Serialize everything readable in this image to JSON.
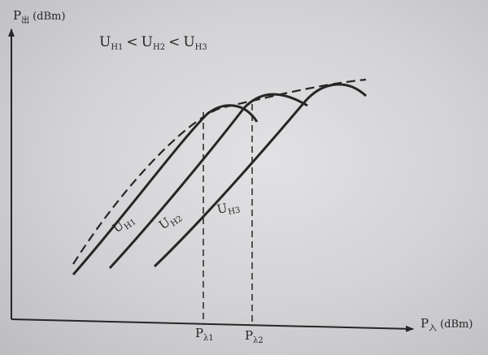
{
  "y_axis": {
    "symbol": "P",
    "subscript": "出",
    "unit": "(dBm)"
  },
  "x_axis": {
    "symbol": "P",
    "subscript": "入",
    "unit": "(dBm)"
  },
  "condition": {
    "u": "U",
    "h1": "H1",
    "h2": "H2",
    "h3": "H3",
    "lt": "<"
  },
  "curves": [
    {
      "label_symbol": "U",
      "label_subscript": "H1"
    },
    {
      "label_symbol": "U",
      "label_subscript": "H2"
    },
    {
      "label_symbol": "U",
      "label_subscript": "H3"
    }
  ],
  "markers": [
    {
      "symbol": "P",
      "subscript": "λ1"
    },
    {
      "symbol": "P",
      "subscript": "λ2"
    }
  ],
  "colors": {
    "ink": "#262626",
    "paper": "#d9d9dc"
  }
}
